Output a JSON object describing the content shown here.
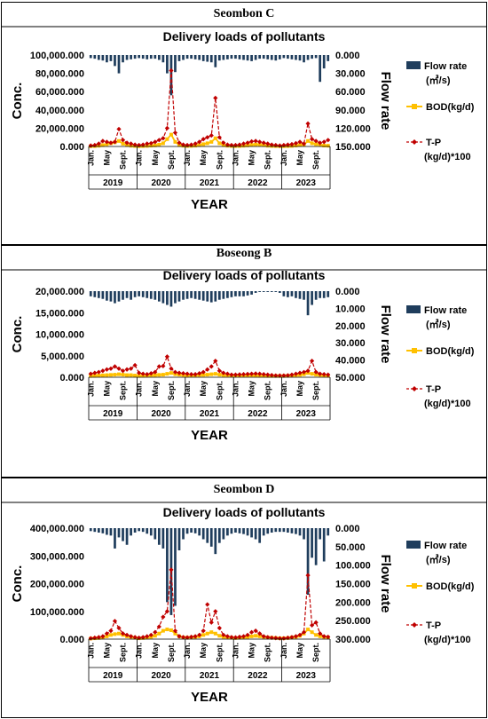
{
  "chart_data": [
    {
      "type": "bar+line",
      "panel_label": "Seombon C",
      "title": "Delivery loads of pollutants",
      "ylabel_left": "Conc.",
      "ylabel_right": "Flow rate",
      "xlabel": "YEAR",
      "left_ticks": [
        "100,000.000",
        "80,000.000",
        "60,000.000",
        "40,000.000",
        "20,000.000",
        "0.000"
      ],
      "right_ticks": [
        "0.000",
        "30.000",
        "60.000",
        "90.000",
        "120.000",
        "150.000"
      ],
      "left_range": [
        0,
        100000
      ],
      "right_range": [
        0,
        150
      ],
      "right_inverted": true,
      "month_ticks": [
        "Jan.",
        "May",
        "Sept."
      ],
      "years": [
        "2019",
        "2020",
        "2021",
        "2022",
        "2023"
      ],
      "legend": [
        "Flow rate\n(㎥/s)",
        "BOD(kg/d)",
        "T-P\n(kg/d)*100"
      ],
      "series": [
        {
          "name": "Flow rate",
          "axis": "right",
          "values": [
            5,
            6,
            8,
            9,
            12,
            10,
            18,
            30,
            12,
            8,
            7,
            6,
            5,
            6,
            7,
            6,
            6,
            8,
            12,
            30,
            66,
            28,
            10,
            8,
            6,
            6,
            7,
            8,
            10,
            11,
            12,
            20,
            9,
            8,
            7,
            6,
            6,
            7,
            8,
            9,
            10,
            8,
            6,
            6,
            7,
            8,
            9,
            7,
            5,
            6,
            7,
            8,
            9,
            12,
            8,
            6,
            5,
            44,
            22,
            10
          ]
        },
        {
          "name": "BOD(kg/d)",
          "axis": "left",
          "values": [
            300,
            400,
            800,
            1500,
            2500,
            3500,
            4500,
            6000,
            3000,
            1500,
            800,
            500,
            300,
            400,
            600,
            900,
            1200,
            2000,
            3500,
            8000,
            13000,
            5000,
            1500,
            800,
            500,
            600,
            900,
            1500,
            2500,
            3500,
            5000,
            9000,
            3500,
            1500,
            800,
            500,
            400,
            500,
            800,
            1200,
            1800,
            2200,
            2000,
            1500,
            800,
            500,
            400,
            300,
            300,
            400,
            600,
            1000,
            1500,
            2000,
            6000,
            3500,
            2500,
            1800,
            1000,
            800
          ]
        },
        {
          "name": "T-P (kg/d)*100",
          "axis": "left",
          "values": [
            1000,
            1500,
            3000,
            6000,
            5000,
            4000,
            5000,
            19000,
            7000,
            4000,
            3000,
            2000,
            1500,
            2000,
            3000,
            3500,
            5000,
            7000,
            9000,
            20000,
            83000,
            15000,
            4000,
            2000,
            1500,
            2000,
            3000,
            5000,
            8000,
            10000,
            12000,
            53000,
            10000,
            4000,
            2000,
            1500,
            1500,
            2000,
            3000,
            4000,
            5500,
            6000,
            5000,
            4000,
            3000,
            2000,
            1500,
            1000,
            1500,
            2000,
            2500,
            3500,
            5000,
            3000,
            25000,
            8000,
            6000,
            4000,
            5000,
            7000
          ]
        }
      ]
    },
    {
      "type": "bar+line",
      "panel_label": "Boseong B",
      "title": "Delivery loads of pollutants",
      "ylabel_left": "Conc.",
      "ylabel_right": "Flow rate",
      "xlabel": "YEAR",
      "left_ticks": [
        "20,000.000",
        "15,000.000",
        "10,000.000",
        "5,000.000",
        "0.000"
      ],
      "right_ticks": [
        "0.000",
        "10.000",
        "20.000",
        "30.000",
        "40.000",
        "50.000"
      ],
      "left_range": [
        0,
        20000
      ],
      "right_range": [
        0,
        50
      ],
      "right_inverted": true,
      "month_ticks": [
        "Jan.",
        "May",
        "Sept."
      ],
      "years": [
        "2019",
        "2020",
        "2021",
        "2022",
        "2023"
      ],
      "legend": [
        "Flow rate\n(㎥/s)",
        "BOD(kg/d)",
        "T-P\n(kg/d)*100"
      ],
      "series": [
        {
          "name": "Flow rate",
          "axis": "right",
          "values": [
            3,
            3.5,
            4,
            4.5,
            5.5,
            6,
            7,
            6,
            5,
            4,
            5,
            3.5,
            3,
            3.5,
            4,
            4.5,
            5,
            6,
            7,
            8,
            9,
            7,
            6,
            5,
            4.5,
            4,
            4.5,
            5,
            5.5,
            6,
            6.5,
            6,
            5,
            4.5,
            4,
            3.5,
            3,
            3,
            3,
            2.5,
            2,
            1,
            0.5,
            0.5,
            0.5,
            0.5,
            0.5,
            1,
            3,
            3.5,
            3,
            4,
            4.5,
            5,
            14,
            8,
            5,
            4,
            4,
            3.5
          ]
        },
        {
          "name": "BOD(kg/d)",
          "axis": "left",
          "values": [
            300,
            350,
            400,
            450,
            500,
            550,
            600,
            700,
            600,
            500,
            500,
            400,
            300,
            350,
            400,
            450,
            500,
            550,
            600,
            800,
            1000,
            700,
            600,
            500,
            400,
            400,
            450,
            500,
            550,
            600,
            700,
            800,
            600,
            500,
            450,
            400,
            400,
            400,
            400,
            450,
            450,
            400,
            350,
            350,
            300,
            300,
            300,
            300,
            300,
            350,
            400,
            450,
            550,
            700,
            1000,
            800,
            600,
            500,
            400,
            350
          ]
        },
        {
          "name": "T-P (kg/d)*100",
          "axis": "left",
          "values": [
            800,
            1000,
            1200,
            1500,
            1800,
            2000,
            2500,
            2000,
            1500,
            1800,
            2000,
            2800,
            1000,
            800,
            700,
            900,
            1200,
            2500,
            2600,
            4800,
            2000,
            1200,
            1000,
            900,
            800,
            700,
            700,
            900,
            1200,
            1800,
            2500,
            3800,
            1500,
            1000,
            800,
            600,
            600,
            650,
            700,
            750,
            800,
            850,
            800,
            700,
            600,
            500,
            400,
            400,
            400,
            450,
            600,
            800,
            1000,
            1200,
            1500,
            3800,
            1200,
            800,
            700,
            600
          ]
        }
      ]
    },
    {
      "type": "bar+line",
      "panel_label": "Seombon D",
      "title": "Delivery loads of pollutants",
      "ylabel_left": "Conc.",
      "ylabel_right": "Flow rate",
      "xlabel": "YEAR",
      "left_ticks": [
        "400,000.000",
        "300,000.000",
        "200,000.000",
        "100,000.000",
        "0.000"
      ],
      "right_ticks": [
        "0.000",
        "50.000",
        "100.000",
        "150.000",
        "200.000",
        "250.000",
        "300.000"
      ],
      "left_range": [
        0,
        400000
      ],
      "right_range": [
        0,
        300
      ],
      "right_inverted": true,
      "month_ticks": [
        "Jan.",
        "May",
        "Sept."
      ],
      "years": [
        "2019",
        "2020",
        "2021",
        "2022",
        "2023"
      ],
      "legend": [
        "Flow rate\n(㎥/s)",
        "BOD(kg/d)",
        "T-P\n(kg/d)*100"
      ],
      "series": [
        {
          "name": "Flow rate",
          "axis": "right",
          "values": [
            8,
            10,
            12,
            14,
            18,
            20,
            55,
            25,
            35,
            45,
            20,
            12,
            8,
            10,
            15,
            20,
            30,
            45,
            55,
            200,
            235,
            210,
            60,
            30,
            15,
            12,
            14,
            20,
            30,
            40,
            50,
            70,
            40,
            30,
            20,
            15,
            12,
            14,
            16,
            20,
            25,
            30,
            40,
            20,
            15,
            12,
            10,
            10,
            10,
            12,
            14,
            16,
            20,
            30,
            180,
            80,
            100,
            30,
            90,
            20
          ]
        },
        {
          "name": "BOD(kg/d)",
          "axis": "left",
          "values": [
            2000,
            3000,
            4000,
            6000,
            10000,
            15000,
            18000,
            20000,
            15000,
            10000,
            8000,
            5000,
            3000,
            4000,
            6000,
            8000,
            12000,
            20000,
            30000,
            35000,
            32000,
            20000,
            10000,
            6000,
            5000,
            6000,
            8000,
            10000,
            15000,
            20000,
            25000,
            20000,
            12000,
            8000,
            6000,
            5000,
            4000,
            5000,
            6000,
            8000,
            10000,
            12000,
            10000,
            8000,
            6000,
            5000,
            4000,
            3000,
            3000,
            4000,
            6000,
            8000,
            12000,
            20000,
            35000,
            25000,
            15000,
            10000,
            8000,
            6000
          ]
        },
        {
          "name": "T-P (kg/d)*100",
          "axis": "left",
          "values": [
            3000,
            5000,
            7000,
            10000,
            20000,
            30000,
            65000,
            40000,
            20000,
            15000,
            10000,
            7000,
            5000,
            7000,
            10000,
            15000,
            25000,
            45000,
            80000,
            100000,
            250000,
            30000,
            10000,
            7000,
            6000,
            8000,
            10000,
            15000,
            30000,
            125000,
            60000,
            100000,
            40000,
            15000,
            10000,
            7000,
            6000,
            8000,
            10000,
            15000,
            25000,
            30000,
            20000,
            10000,
            7000,
            5000,
            4000,
            3000,
            3000,
            5000,
            7000,
            10000,
            15000,
            25000,
            230000,
            50000,
            60000,
            20000,
            10000,
            8000
          ]
        }
      ]
    }
  ]
}
